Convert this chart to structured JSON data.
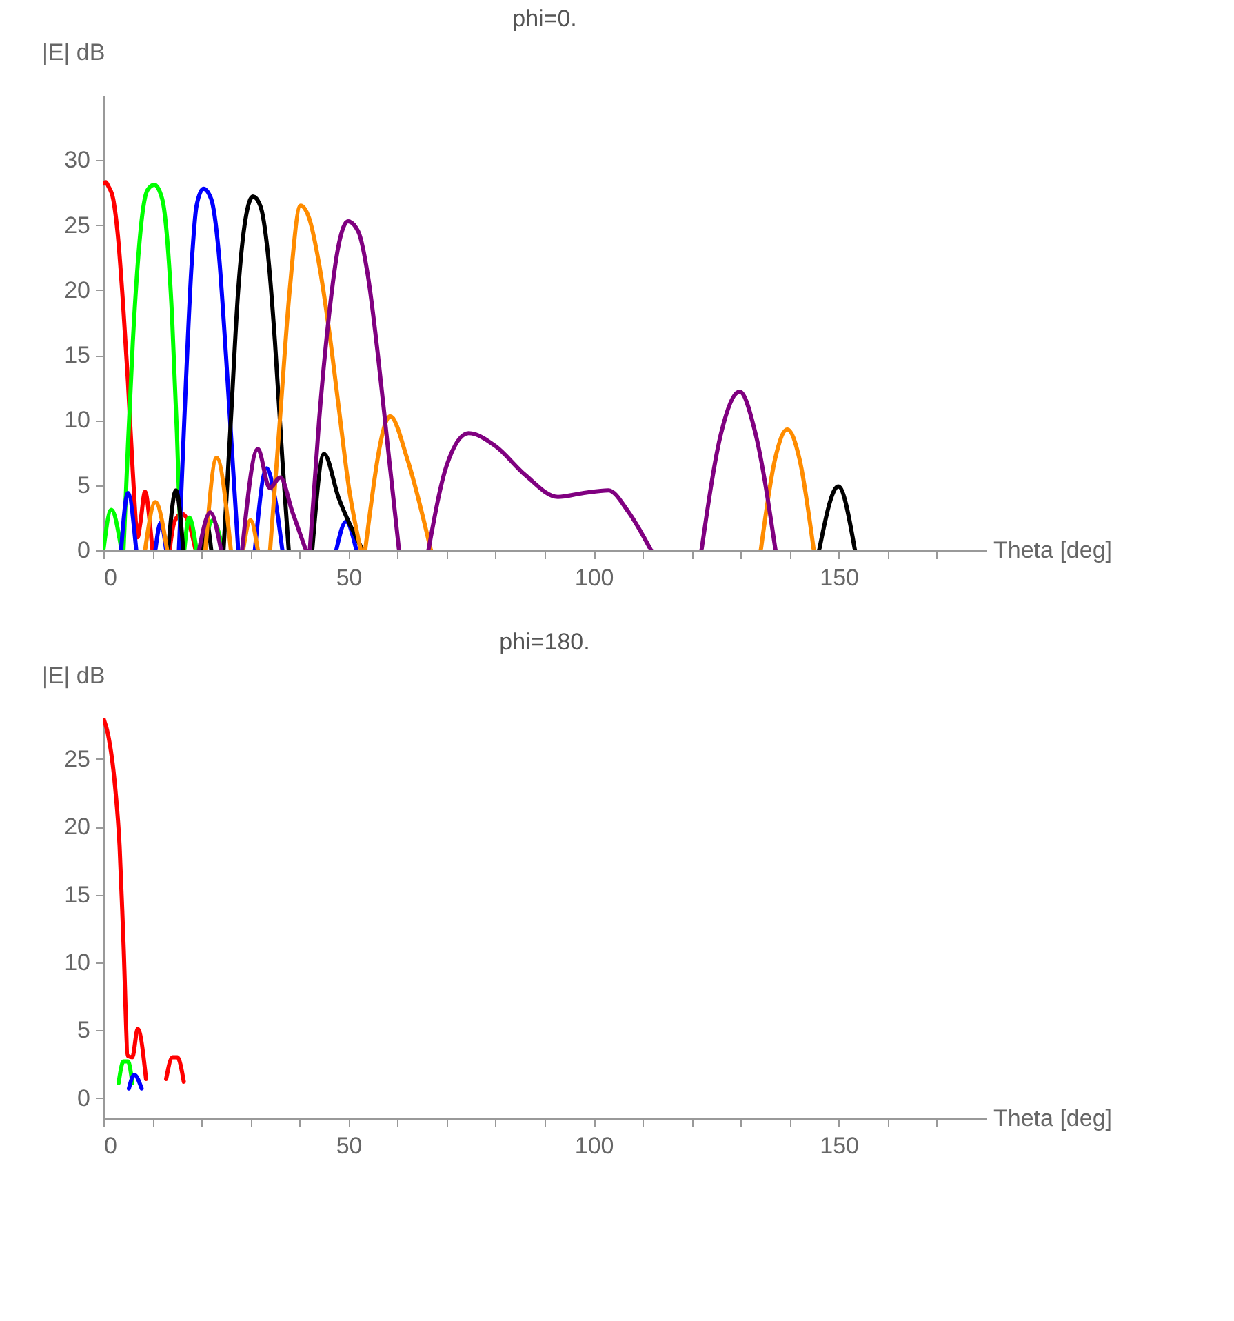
{
  "chart_data": [
    {
      "type": "line",
      "title": "phi=0.",
      "xlabel": "Theta [deg]",
      "ylabel": "|E| dB",
      "xlim": [
        0,
        180
      ],
      "ylim": [
        0,
        35
      ],
      "xticks": [
        0,
        {
          "value": 10,
          "label": null
        },
        {
          "value": 20,
          "label": null
        },
        {
          "value": 30,
          "label": null
        },
        {
          "value": 40,
          "label": null
        },
        50,
        {
          "value": 60,
          "label": null
        },
        {
          "value": 70,
          "label": null
        },
        {
          "value": 80,
          "label": null
        },
        {
          "value": 90,
          "label": null
        },
        100,
        {
          "value": 110,
          "label": null
        },
        {
          "value": 120,
          "label": null
        },
        {
          "value": 130,
          "label": null
        },
        {
          "value": 140,
          "label": null
        },
        150,
        {
          "value": 160,
          "label": null
        },
        {
          "value": 170,
          "label": null
        }
      ],
      "yticks": [
        0,
        5,
        10,
        15,
        20,
        25,
        30
      ],
      "series": [
        {
          "color": "#ff0000",
          "x": [
            0,
            0.5,
            1,
            2,
            3,
            4,
            5,
            6,
            7,
            7.5,
            8.5,
            9.5,
            10,
            10.5,
            13.5,
            14.5,
            16,
            17.5,
            18.8
          ],
          "values": [
            28.2,
            28.3,
            28,
            27,
            24,
            19,
            13,
            6,
            1,
            2,
            4.5,
            2,
            0,
            null,
            0,
            2.2,
            2.8,
            2,
            0
          ]
        },
        {
          "color": "#00ff00",
          "x": [
            0,
            1.6,
            3.7,
            3.9,
            4.1,
            5,
            6,
            7,
            8,
            9,
            10.4,
            12,
            13,
            14,
            15,
            15.8,
            16.1,
            16.5,
            17.5,
            19,
            19.5,
            20.5,
            22.3,
            24.4
          ],
          "values": [
            0,
            3.1,
            0,
            null,
            0,
            8,
            16,
            22,
            26,
            27.7,
            28.1,
            27,
            24,
            18,
            9,
            0,
            null,
            0,
            2.5,
            0,
            null,
            0,
            2.3,
            0
          ]
        },
        {
          "color": "#0000ff",
          "x": [
            3.6,
            5,
            6.7,
            7,
            10.6,
            11.7,
            12.8,
            13.5,
            15.4,
            16.5,
            18,
            19,
            20.4,
            22,
            23.5,
            25,
            26.5,
            27.5,
            28,
            30.9,
            33.3,
            35,
            36.5,
            37,
            47.5,
            49.5,
            51.6
          ],
          "values": [
            0,
            4.4,
            0,
            null,
            0,
            2.1,
            0,
            null,
            0,
            10,
            22,
            26.5,
            27.8,
            27,
            23,
            15,
            6,
            0,
            null,
            0,
            6.3,
            4,
            0,
            null,
            0,
            2.2,
            0
          ]
        },
        {
          "color": "#000000",
          "x": [
            13.2,
            14.8,
            16.3,
            17,
            20,
            21,
            22,
            23,
            24.5,
            26,
            27.5,
            29,
            30.5,
            32,
            33.5,
            35,
            36.5,
            37.8,
            38.5,
            42.6,
            45,
            48,
            52.9,
            53.5,
            146,
            149.9,
            153.3
          ],
          "values": [
            0,
            4.6,
            0,
            null,
            0,
            2.2,
            0,
            null,
            0,
            10,
            20,
            25.5,
            27.2,
            26.5,
            23,
            16,
            7,
            0,
            null,
            0,
            7.4,
            4,
            0,
            null,
            0,
            4.9,
            0
          ]
        },
        {
          "color": "#ff8c00",
          "x": [
            8.5,
            10.6,
            13,
            14,
            20.8,
            23.1,
            26,
            27,
            28.5,
            30,
            31.5,
            32.2,
            34,
            36,
            38,
            40.2,
            42,
            44,
            46,
            48,
            50,
            52.5,
            53,
            53.4,
            58.5,
            62,
            66.8,
            67,
            134.1,
            137,
            139.5,
            142,
            144.9
          ],
          "values": [
            0,
            3.7,
            0,
            null,
            0,
            7.1,
            0,
            null,
            0,
            2.3,
            0,
            null,
            0,
            10,
            20,
            26.5,
            25.5,
            22,
            17,
            11,
            5,
            0,
            null,
            0,
            10.3,
            7,
            0,
            null,
            0,
            7,
            9.3,
            7,
            0
          ]
        },
        {
          "color": "#800080",
          "x": [
            19.5,
            21.8,
            24,
            25,
            28.3,
            31.5,
            33.9,
            36.1,
            38.5,
            41.3,
            41.7,
            42.1,
            44,
            46,
            48,
            49.9,
            52,
            54,
            56,
            58,
            60.3,
            61,
            66.3,
            70,
            74.5,
            80,
            86,
            92.7,
            98,
            103,
            107,
            111.7,
            112,
            122,
            126,
            129.8,
            133,
            137.1
          ],
          "values": [
            0,
            2.9,
            0,
            null,
            0,
            7.8,
            4.8,
            5.6,
            3,
            0,
            null,
            0,
            10,
            18,
            23.5,
            25.3,
            24.5,
            21,
            15,
            8,
            0,
            null,
            0,
            6.5,
            9,
            8,
            5.8,
            4.1,
            4.4,
            4.6,
            3,
            0,
            null,
            0,
            9,
            12.2,
            9,
            0
          ]
        }
      ]
    },
    {
      "type": "line",
      "title": "phi=180.",
      "xlabel": "Theta [deg]",
      "ylabel": "|E| dB",
      "xlim": [
        0,
        180
      ],
      "ylim": [
        -1.5,
        28
      ],
      "xticks": [
        0,
        {
          "value": 10,
          "label": null
        },
        {
          "value": 20,
          "label": null
        },
        {
          "value": 30,
          "label": null
        },
        {
          "value": 40,
          "label": null
        },
        50,
        {
          "value": 60,
          "label": null
        },
        {
          "value": 70,
          "label": null
        },
        {
          "value": 80,
          "label": null
        },
        {
          "value": 90,
          "label": null
        },
        100,
        {
          "value": 110,
          "label": null
        },
        {
          "value": 120,
          "label": null
        },
        {
          "value": 130,
          "label": null
        },
        {
          "value": 140,
          "label": null
        },
        150,
        {
          "value": 160,
          "label": null
        },
        {
          "value": 170,
          "label": null
        }
      ],
      "yticks": [
        0,
        5,
        10,
        15,
        20,
        25
      ],
      "series": [
        {
          "color": "#ff0000",
          "x": [
            0,
            0.9,
            2.4,
            3.3,
            4.1,
            5,
            5.9,
            7,
            8.7,
            10,
            12.8,
            14.1,
            15.1,
            16.4
          ],
          "values": [
            28,
            26.9,
            22.9,
            18.6,
            11.4,
            3.1,
            3,
            5.1,
            1.4,
            null,
            1.4,
            3,
            3,
            1.2
          ]
        },
        {
          "color": "#00ff00",
          "x": [
            3.1,
            4.1,
            5,
            5.9
          ],
          "values": [
            1.1,
            2.7,
            2.7,
            1.1
          ]
        },
        {
          "color": "#0000ff",
          "x": [
            5.2,
            6.3,
            7.8
          ],
          "values": [
            0.7,
            1.7,
            0.7
          ]
        }
      ]
    }
  ]
}
